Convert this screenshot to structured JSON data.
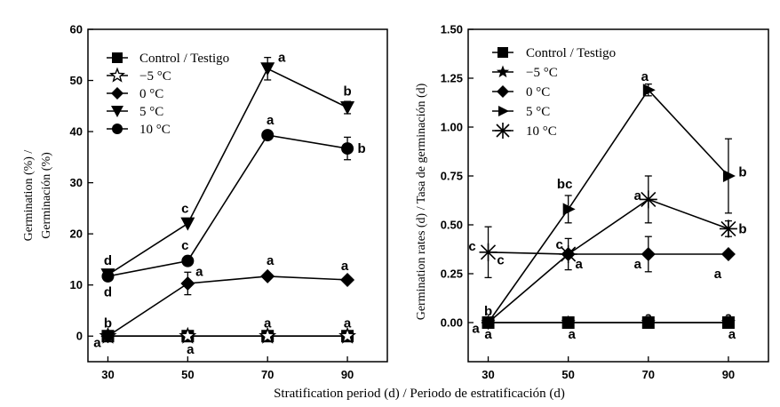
{
  "figure": {
    "xlabel": "Stratification period (d) / Periodo de estratificación  (d)"
  },
  "chart_data": [
    {
      "type": "line",
      "title": "",
      "xlabel": "",
      "ylabel": "Germination (%) / Germinación  (%)",
      "ylabel_line1": "Germination (%) /",
      "ylabel_line2": "Germinación  (%)",
      "x": [
        30,
        50,
        70,
        90
      ],
      "xlim": [
        25,
        100
      ],
      "ylim": [
        -5,
        60
      ],
      "xticks": [
        30,
        50,
        70,
        90
      ],
      "yticks": [
        0,
        10,
        20,
        30,
        40,
        50,
        60
      ],
      "legend_position": "top-left",
      "series": [
        {
          "name": "Control / Testigo",
          "marker": "square",
          "values": [
            0,
            0,
            0,
            0
          ],
          "errors": [
            0,
            0,
            0,
            0
          ]
        },
        {
          "name": "−5  °C",
          "marker": "star-open",
          "values": [
            0,
            0,
            0,
            0
          ],
          "errors": [
            0,
            0,
            0,
            0
          ]
        },
        {
          "name": "0  °C",
          "marker": "diamond",
          "values": [
            0,
            10.3,
            11.7,
            11
          ],
          "errors": [
            0,
            2.2,
            0,
            0
          ]
        },
        {
          "name": "5  °C",
          "marker": "triangle-down",
          "values": [
            12,
            22,
            52.3,
            44.7
          ],
          "errors": [
            0,
            0,
            2.2,
            1.2
          ]
        },
        {
          "name": "10  °C",
          "marker": "circle",
          "values": [
            11.7,
            14.7,
            39.3,
            36.7
          ],
          "errors": [
            0,
            0,
            0,
            2.2
          ]
        }
      ],
      "annotations": [
        {
          "text": "d",
          "x": 30,
          "y": 14.8,
          "dx": 0
        },
        {
          "text": "d",
          "x": 30,
          "y": 8.6,
          "dx": 0
        },
        {
          "text": "b",
          "x": 30,
          "y": 2.6,
          "dx": 0
        },
        {
          "text": "a",
          "x": 30,
          "y": -1.3,
          "dx": -12
        },
        {
          "text": "c",
          "x": 50,
          "y": 25.0,
          "dx": -3
        },
        {
          "text": "c",
          "x": 50,
          "y": 17.8,
          "dx": -3
        },
        {
          "text": "a",
          "x": 50,
          "y": 12.6,
          "dx": 13
        },
        {
          "text": "a",
          "x": 50,
          "y": -2.6,
          "dx": 3
        },
        {
          "text": "a",
          "x": 70,
          "y": 54.5,
          "dx": 16
        },
        {
          "text": "a",
          "x": 70,
          "y": 42.3,
          "dx": 3
        },
        {
          "text": "a",
          "x": 70,
          "y": 14.8,
          "dx": 3
        },
        {
          "text": "a",
          "x": 70,
          "y": 2.6,
          "dx": 0
        },
        {
          "text": "b",
          "x": 90,
          "y": 47.9,
          "dx": 0
        },
        {
          "text": "b",
          "x": 90,
          "y": 36.7,
          "dx": 16
        },
        {
          "text": "a",
          "x": 90,
          "y": 13.8,
          "dx": -3
        },
        {
          "text": "a",
          "x": 90,
          "y": 2.6,
          "dx": 0
        }
      ]
    },
    {
      "type": "line",
      "title": "",
      "xlabel": "",
      "ylabel": "Germination rates (d) / Tasa de germinación  (d)",
      "x": [
        30,
        50,
        70,
        90
      ],
      "xlim": [
        25,
        100
      ],
      "ylim": [
        -0.2,
        1.5
      ],
      "xticks": [
        30,
        50,
        70,
        90
      ],
      "yticks": [
        0.0,
        0.25,
        0.5,
        0.75,
        1.0,
        1.25,
        1.5
      ],
      "ytick_labels": [
        "0.00",
        "0.25",
        "0.50",
        "0.75",
        "1.00",
        "1.25",
        "1.50"
      ],
      "legend_position": "top-left",
      "series": [
        {
          "name": "Control / Testigo",
          "marker": "square",
          "values": [
            0,
            0,
            0,
            0
          ],
          "errors": [
            0,
            0,
            0,
            0
          ]
        },
        {
          "name": "−5  °C",
          "marker": "star",
          "values": [
            0,
            0,
            0,
            0
          ],
          "errors": [
            0,
            0,
            0,
            0
          ]
        },
        {
          "name": "0  °C",
          "marker": "diamond",
          "values": [
            0,
            0.35,
            0.35,
            0.35
          ],
          "errors": [
            0,
            0.08,
            0.09,
            0
          ]
        },
        {
          "name": "5  °C",
          "marker": "triangle-right",
          "values": [
            0,
            0.58,
            1.19,
            0.75
          ],
          "errors": [
            0,
            0.07,
            0.03,
            0.19
          ]
        },
        {
          "name": "10  °C",
          "marker": "asterisk",
          "values": [
            0.36,
            0.35,
            0.63,
            0.48
          ],
          "errors": [
            0.13,
            0,
            0.12,
            0.04
          ]
        }
      ],
      "annotations": [
        {
          "text": "c",
          "x": 30,
          "y": 0.39,
          "dx": -18
        },
        {
          "text": "c",
          "x": 30,
          "y": 0.32,
          "dx": 14
        },
        {
          "text": "b",
          "x": 30,
          "y": 0.06,
          "dx": 0
        },
        {
          "text": "a",
          "x": 30,
          "y": -0.03,
          "dx": -14
        },
        {
          "text": "a",
          "x": 30,
          "y": -0.06,
          "dx": 0
        },
        {
          "text": "bc",
          "x": 50,
          "y": 0.71,
          "dx": -4
        },
        {
          "text": "c",
          "x": 50,
          "y": 0.4,
          "dx": -10
        },
        {
          "text": "a",
          "x": 50,
          "y": 0.3,
          "dx": 12
        },
        {
          "text": "a",
          "x": 50,
          "y": -0.06,
          "dx": 4
        },
        {
          "text": "a",
          "x": 70,
          "y": 1.26,
          "dx": -4
        },
        {
          "text": "a",
          "x": 70,
          "y": 0.65,
          "dx": -12
        },
        {
          "text": "a",
          "x": 70,
          "y": 0.3,
          "dx": -12
        },
        {
          "text": "a",
          "x": 70,
          "y": 0.03,
          "dx": 0
        },
        {
          "text": "b",
          "x": 90,
          "y": 0.77,
          "dx": 16
        },
        {
          "text": "b",
          "x": 90,
          "y": 0.48,
          "dx": 16
        },
        {
          "text": "a",
          "x": 90,
          "y": 0.25,
          "dx": -12
        },
        {
          "text": "a",
          "x": 90,
          "y": 0.03,
          "dx": 0
        },
        {
          "text": "a",
          "x": 90,
          "y": -0.06,
          "dx": 4
        }
      ]
    }
  ]
}
